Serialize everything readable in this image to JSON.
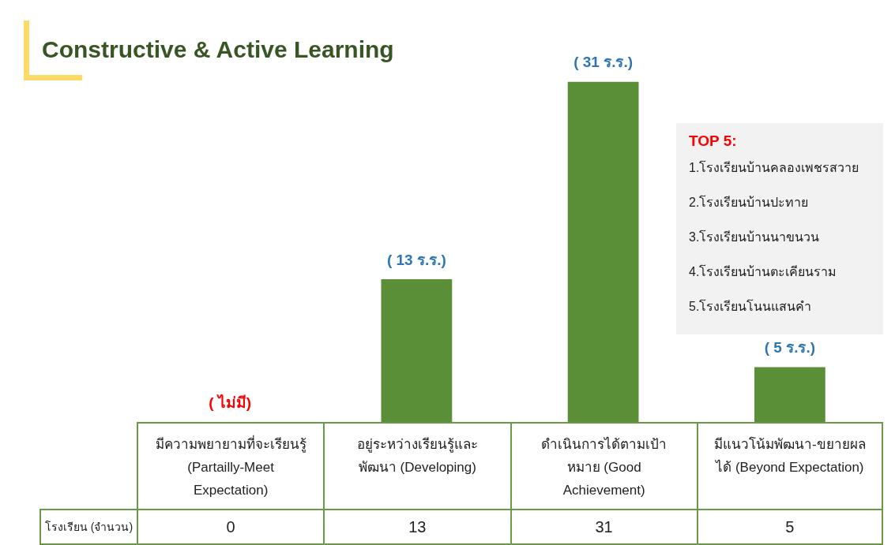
{
  "chart_data": {
    "type": "bar",
    "title": "Constructive & Active Learning",
    "categories": [
      "มีความพยายามที่จะเรียนรู้ (Partailly-Meet Expectation)",
      "อยู่ระหว่างเรียนรู้และพัฒนา (Developing)",
      "ดำเนินการได้ตามเป้าหมาย (Good Achievement)",
      "มีแนวโน้มพัฒนา-ขยายผลได้ (Beyond Expectation)"
    ],
    "values": [
      0,
      13,
      31,
      5
    ],
    "color": "#5b8f37",
    "value_labels": [
      "0",
      "13",
      "31",
      "5"
    ],
    "annotations": [
      {
        "text": "( ไม่มี)",
        "x": "มีความพยายามที่จะเรียนรู้ (Partailly-Meet Expectation)",
        "y": 0
      },
      {
        "text": "( 13 ร.ร.)",
        "x": "อยู่ระหว่างเรียนรู้และพัฒนา (Developing)",
        "y": 13
      },
      {
        "text": "( 31 ร.ร.)",
        "x": "ดำเนินการได้ตามเป้าหมาย (Good Achievement)",
        "y": 31
      },
      {
        "text": "( 5 ร.ร.)",
        "x": "มีแนวโน้มพัฒนา-ขยายผลได้ (Beyond Expectation)",
        "y": 5
      },
      "โรงเรียน (จำนวน)",
      "TOP 5:",
      "1.โรงเรียนบ้านคลองเพชรสวาย",
      "2.โรงเรียนบ้านปะทาย",
      "3.โรงเรียนบ้านนาขนวน",
      "4.โรงเรียนบ้านตะเคียนราม",
      "5.โรงเรียนโนนแสนคำ"
    ]
  }
}
